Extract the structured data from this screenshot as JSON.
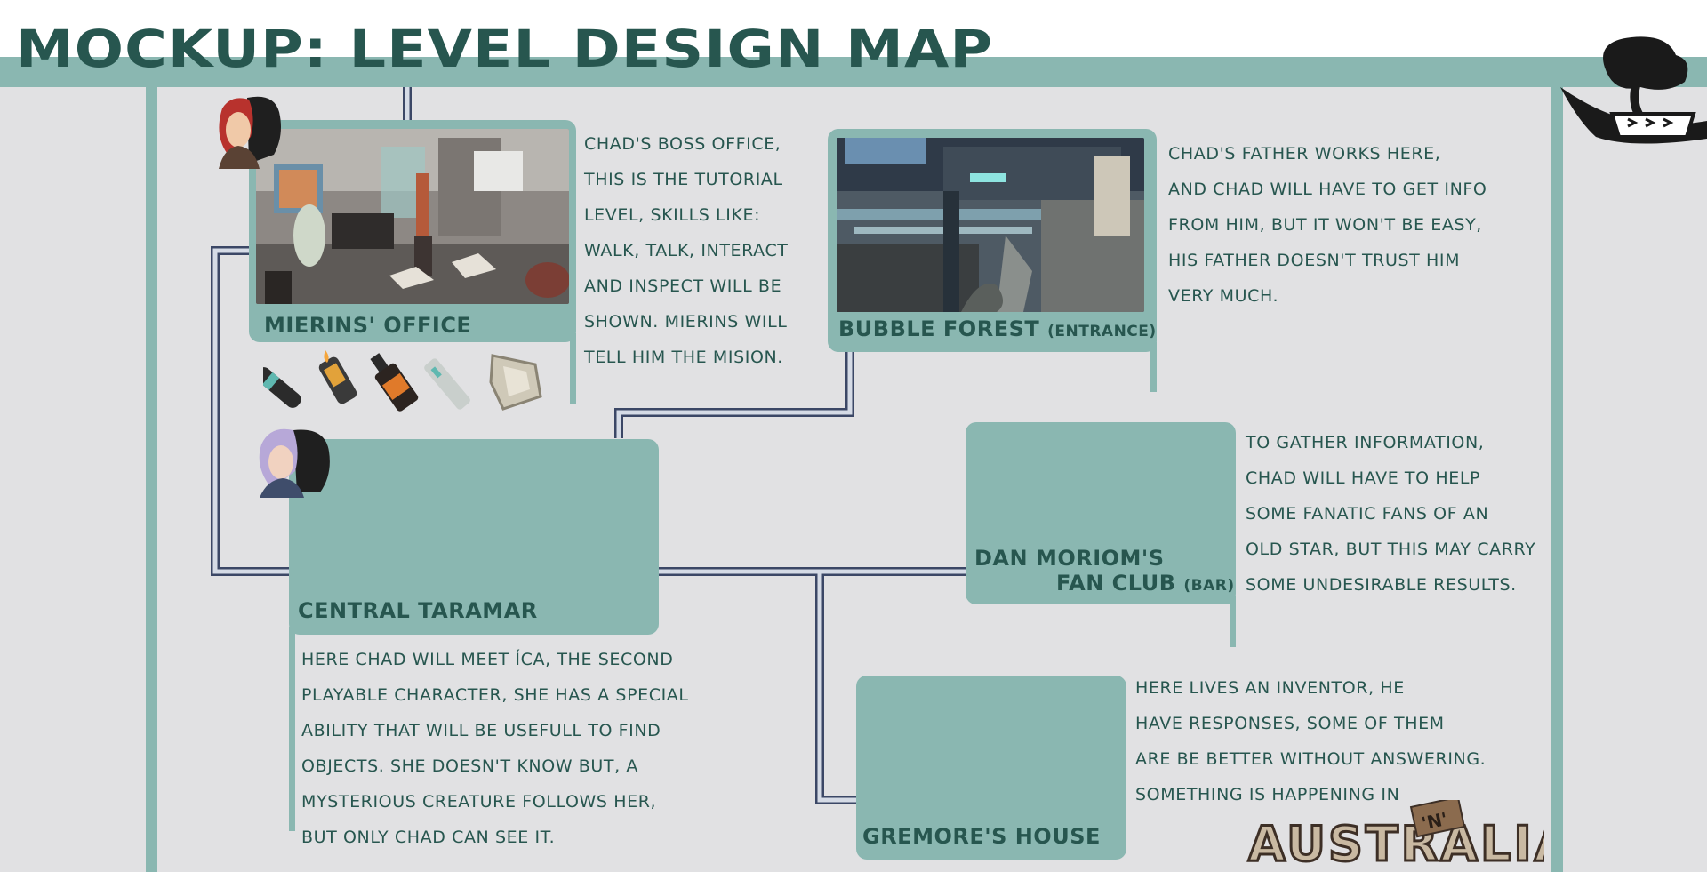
{
  "page": {
    "title": "MOCKUP: LEVEL DESIGN MAP"
  },
  "colors": {
    "background": "#e1e1e3",
    "accent": "#8ab7b1",
    "text": "#27564f",
    "pipe_fill": "#d5dbe6",
    "pipe_edge": "#3b4766"
  },
  "levels": {
    "mierins_office": {
      "label": "MIERINS' OFFICE",
      "description": [
        "CHAD'S BOSS OFFICE,",
        "THIS IS THE TUTORIAL",
        "LEVEL, SKILLS LIKE:",
        "WALK, TALK, INTERACT",
        "AND INSPECT WILL BE",
        "SHOWN. MIERINS WILL",
        "TELL HIM THE MISION."
      ],
      "items": [
        "cigar-icon",
        "lighter-icon",
        "whiskey-bottle-icon",
        "key-icon",
        "cloth-icon"
      ]
    },
    "bubble_forest": {
      "label": "BUBBLE FOREST",
      "label_suffix": "(ENTRANCE)",
      "description": [
        "CHAD'S FATHER WORKS HERE,",
        "AND CHAD WILL HAVE TO GET INFO",
        "FROM HIM, BUT IT WON'T BE EASY,",
        "HIS FATHER DOESN'T TRUST HIM",
        "VERY MUCH."
      ]
    },
    "central_taramar": {
      "label": "CENTRAL TARAMAR",
      "description": [
        "HERE CHAD WILL MEET ÍCA, THE SECOND",
        "PLAYABLE CHARACTER, SHE HAS A SPECIAL",
        "ABILITY THAT WILL BE USEFULL TO FIND",
        "OBJECTS. SHE DOESN'T KNOW BUT, A",
        "MYSTERIOUS CREATURE FOLLOWS HER,",
        "BUT ONLY CHAD CAN SEE IT."
      ]
    },
    "dan_moriom": {
      "label_line1": "DAN MORIOM'S",
      "label_line2": "FAN CLUB",
      "label_suffix": "(BAR)",
      "description": [
        "TO GATHER INFORMATION,",
        "CHAD WILL HAVE TO HELP",
        "SOME FANATIC FANS OF AN",
        "OLD STAR, BUT THIS MAY CARRY",
        "SOME UNDESIRABLE RESULTS."
      ]
    },
    "gremore_house": {
      "label": "GREMORE'S HOUSE",
      "description": [
        "HERE LIVES AN INVENTOR, HE",
        "HAVE RESPONSES, SOME OF THEM",
        "ARE BE BETTER WITHOUT ANSWERING.",
        "SOMETHING IS HAPPENING IN"
      ]
    }
  },
  "logos": {
    "game_logo": "AUSTRALIA",
    "game_logo_badge": "'N'"
  }
}
